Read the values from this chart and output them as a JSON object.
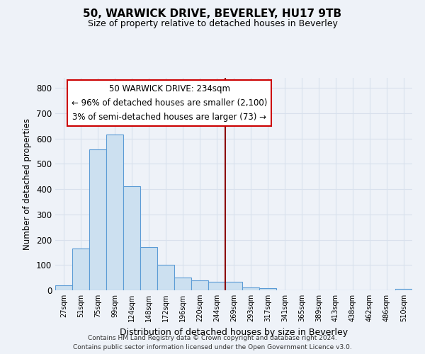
{
  "title": "50, WARWICK DRIVE, BEVERLEY, HU17 9TB",
  "subtitle": "Size of property relative to detached houses in Beverley",
  "xlabel": "Distribution of detached houses by size in Beverley",
  "ylabel": "Number of detached properties",
  "bar_labels": [
    "27sqm",
    "51sqm",
    "75sqm",
    "99sqm",
    "124sqm",
    "148sqm",
    "172sqm",
    "196sqm",
    "220sqm",
    "244sqm",
    "269sqm",
    "293sqm",
    "317sqm",
    "341sqm",
    "365sqm",
    "389sqm",
    "413sqm",
    "438sqm",
    "462sqm",
    "486sqm",
    "510sqm"
  ],
  "bar_heights": [
    20,
    165,
    558,
    615,
    413,
    170,
    100,
    50,
    40,
    35,
    33,
    10,
    8,
    0,
    0,
    0,
    0,
    0,
    0,
    0,
    5
  ],
  "bar_color": "#cce0f0",
  "bar_edge_color": "#5b9bd5",
  "vline_x": 9.5,
  "vline_color": "#8b0000",
  "ylim": [
    0,
    840
  ],
  "yticks": [
    0,
    100,
    200,
    300,
    400,
    500,
    600,
    700,
    800
  ],
  "annotation_title": "50 WARWICK DRIVE: 234sqm",
  "annotation_line1": "← 96% of detached houses are smaller (2,100)",
  "annotation_line2": "3% of semi-detached houses are larger (73) →",
  "footer1": "Contains HM Land Registry data © Crown copyright and database right 2024.",
  "footer2": "Contains public sector information licensed under the Open Government Licence v3.0.",
  "bg_color": "#eef2f8",
  "grid_color": "#d8e0ec"
}
